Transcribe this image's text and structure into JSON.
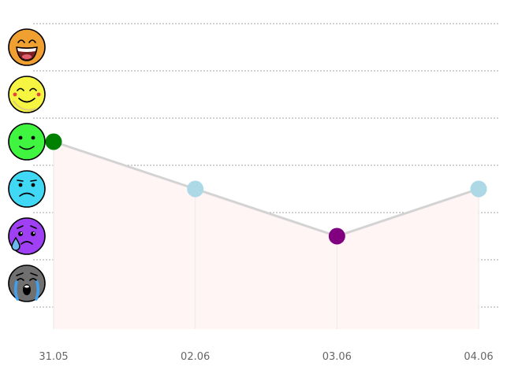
{
  "chart_data": {
    "type": "line",
    "title": "",
    "xlabel": "",
    "ylabel": "",
    "x": [
      "31.05",
      "02.06",
      "03.06",
      "04.06"
    ],
    "levels": [
      {
        "value": 6,
        "icon": "laughing-face-icon",
        "color": "#f0a030"
      },
      {
        "value": 5,
        "icon": "smiling-face-icon",
        "color": "#f5f542"
      },
      {
        "value": 4,
        "icon": "happy-face-icon",
        "color": "#3ff53f"
      },
      {
        "value": 3,
        "icon": "sad-face-icon",
        "color": "#40d8f5"
      },
      {
        "value": 2,
        "icon": "worried-tear-face-icon",
        "color": "#a040f5"
      },
      {
        "value": 1,
        "icon": "crying-face-icon",
        "color": "#707070"
      }
    ],
    "series": [
      {
        "values": [
          4,
          3,
          2,
          3
        ],
        "point_colors": [
          "#008000",
          "#add8e6",
          "#800080",
          "#add8e6"
        ],
        "line_color": "#d3d3d3",
        "fill_color": "#fff5f5"
      }
    ],
    "ylim": [
      0.5,
      6.5
    ],
    "grid": true
  }
}
